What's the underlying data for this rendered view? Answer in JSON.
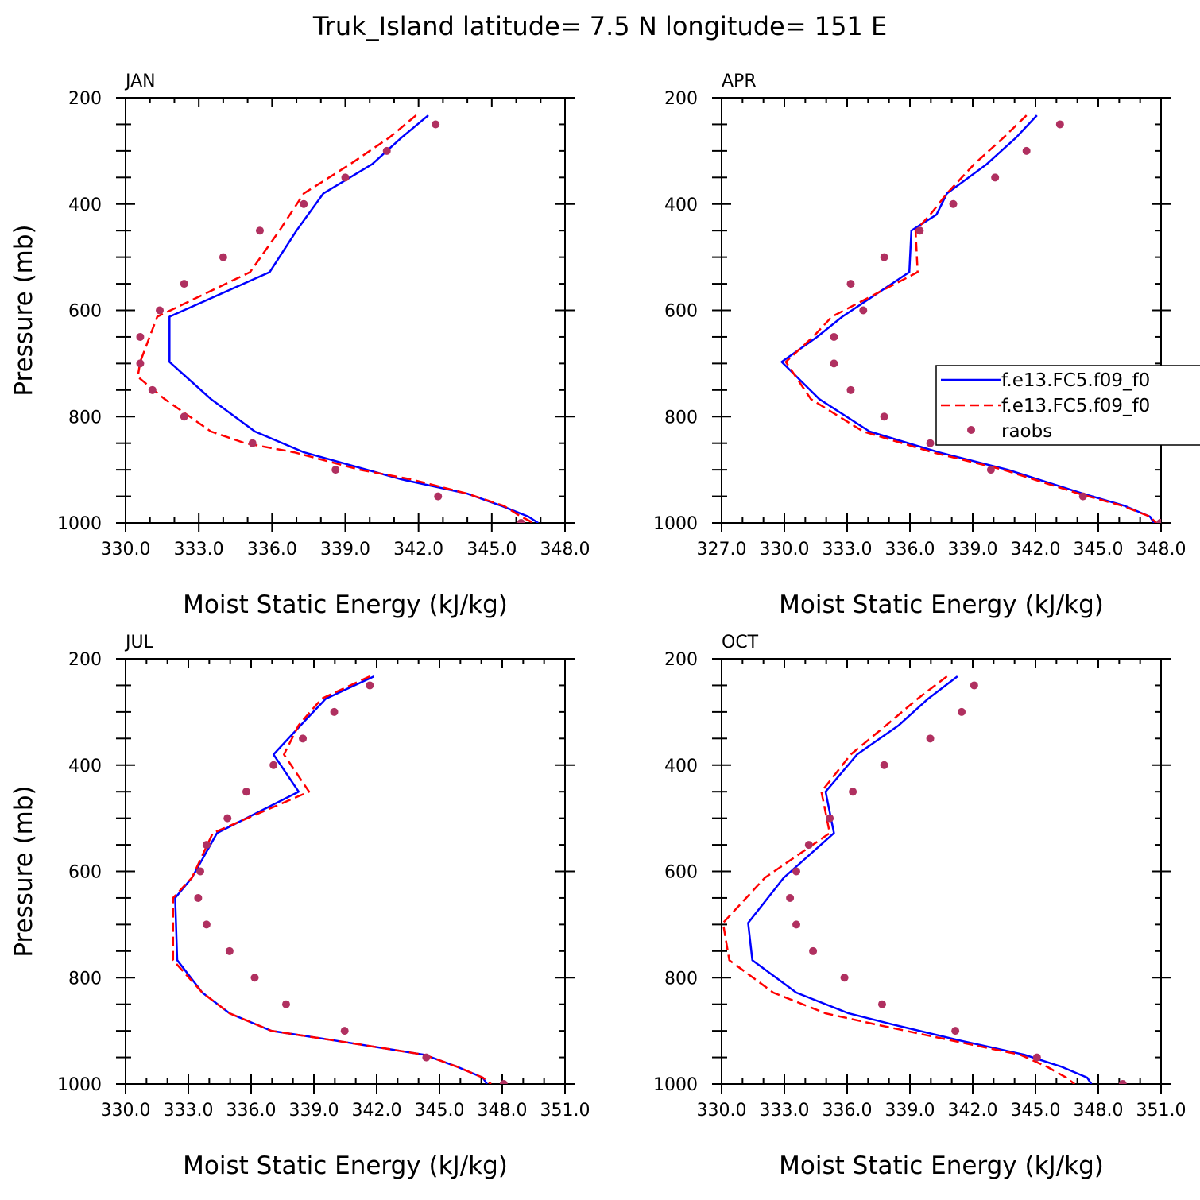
{
  "figure": {
    "title": "Truk_Island  latitude= 7.5 N longitude= 151 E"
  },
  "colors": {
    "model_solid": "#0000ff",
    "model_dashed": "#ff0000",
    "raobs": "#b03060",
    "axis": "#000000"
  },
  "legend": {
    "entries": [
      "f.e13.FC5.f09_f0",
      "f.e13.FC5.f09_f0",
      "raobs"
    ]
  },
  "chart_data": [
    {
      "type": "line",
      "title": "JAN",
      "xlabel": "Moist Static Energy (kJ/kg)",
      "ylabel": "Pressure (mb)",
      "xlim": [
        330,
        348
      ],
      "ylim": [
        1000,
        200
      ],
      "xticks": [
        "330.0",
        "333.0",
        "336.0",
        "339.0",
        "342.0",
        "345.0",
        "348.0"
      ],
      "yticks": [
        "200",
        "400",
        "600",
        "800",
        "1000"
      ],
      "series": [
        {
          "name": "f.e13.FC5.f09_f0",
          "style": "solid",
          "x": [
            342.4,
            341.3,
            340.1,
            338.1,
            337.0,
            335.9,
            331.8,
            331.8,
            333.5,
            335.3,
            337.3,
            341.3,
            344.0,
            345.4,
            346.5,
            346.9
          ],
          "y": [
            233,
            275,
            325,
            380,
            450,
            528,
            612,
            697,
            767,
            828,
            867,
            918,
            945,
            968,
            988,
            1000
          ]
        },
        {
          "name": "f.e13.FC5.f09_f0",
          "style": "dashed",
          "x": [
            341.9,
            340.8,
            339.2,
            337.3,
            336.3,
            335.1,
            331.3,
            330.6,
            330.5,
            331.6,
            333.5,
            334.9,
            336.9,
            339.6,
            341.7,
            344.0,
            345.5,
            346.2,
            346.7
          ],
          "y": [
            233,
            275,
            325,
            380,
            450,
            528,
            612,
            697,
            725,
            767,
            828,
            850,
            867,
            900,
            918,
            945,
            968,
            988,
            1000
          ]
        }
      ],
      "raobs": {
        "x": [
          342.7,
          340.7,
          339.0,
          337.3,
          335.5,
          334.0,
          332.4,
          331.4,
          330.6,
          330.6,
          331.1,
          332.4,
          335.2,
          338.6,
          342.8,
          346.2
        ],
        "y": [
          250,
          300,
          350,
          400,
          450,
          500,
          550,
          600,
          650,
          700,
          750,
          800,
          850,
          900,
          950,
          1000
        ]
      },
      "legend": false
    },
    {
      "type": "line",
      "title": "APR",
      "xlabel": "Moist Static Energy (kJ/kg)",
      "ylabel": "",
      "xlim": [
        327.03,
        348.03
      ],
      "ylim": [
        1000,
        200
      ],
      "xticks": [
        "327.0",
        "330.0",
        "333.0",
        "336.0",
        "339.0",
        "342.0",
        "345.0",
        "348.0"
      ],
      "yticks": [
        "200",
        "400",
        "600",
        "800",
        "1000"
      ],
      "series": [
        {
          "name": "f.e13.FC5.f09_f0",
          "style": "solid",
          "x": [
            342.1,
            341.1,
            339.7,
            337.8,
            337.3,
            336.1,
            336.0,
            332.8,
            331.6,
            329.9,
            331.7,
            334.1,
            337.4,
            340.7,
            344.3,
            346.3,
            347.5,
            347.7
          ],
          "y": [
            233,
            275,
            325,
            380,
            420,
            450,
            528,
            612,
            650,
            697,
            767,
            828,
            867,
            900,
            945,
            968,
            988,
            1000
          ]
        },
        {
          "name": "f.e13.FC5.f09_f0",
          "style": "dashed",
          "x": [
            341.6,
            340.5,
            339.1,
            337.8,
            337.0,
            336.3,
            336.4,
            332.3,
            331.4,
            330.1,
            331.3,
            333.8,
            337.1,
            340.5,
            344.1,
            346.2,
            347.5,
            347.8
          ],
          "y": [
            233,
            275,
            325,
            380,
            420,
            450,
            528,
            612,
            650,
            697,
            767,
            828,
            867,
            900,
            945,
            968,
            988,
            1000
          ]
        }
      ],
      "raobs": {
        "x": [
          343.2,
          341.6,
          340.1,
          338.1,
          336.5,
          334.8,
          333.2,
          333.8,
          332.4,
          332.4,
          333.2,
          334.8,
          337.0,
          339.9,
          344.3,
          348.0
        ],
        "y": [
          250,
          300,
          350,
          400,
          450,
          500,
          550,
          600,
          650,
          700,
          750,
          800,
          850,
          900,
          950,
          1000
        ]
      },
      "legend": true
    },
    {
      "type": "line",
      "title": "JUL",
      "xlabel": "Moist Static Energy (kJ/kg)",
      "ylabel": "Pressure (mb)",
      "xlim": [
        330.03,
        351.03
      ],
      "ylim": [
        1000,
        200
      ],
      "xticks": [
        "330.0",
        "333.0",
        "336.0",
        "339.0",
        "342.0",
        "345.0",
        "348.0",
        "351.0"
      ],
      "yticks": [
        "200",
        "400",
        "600",
        "800",
        "1000"
      ],
      "series": [
        {
          "name": "f.e13.FC5.f09_f0",
          "style": "solid",
          "x": [
            341.9,
            339.6,
            338.4,
            337.1,
            338.3,
            334.4,
            333.2,
            332.4,
            332.5,
            333.7,
            335.0,
            337.0,
            340.0,
            344.3,
            345.9,
            347.1,
            347.3
          ],
          "y": [
            233,
            275,
            325,
            380,
            450,
            528,
            612,
            650,
            767,
            828,
            867,
            900,
            918,
            945,
            968,
            988,
            1000
          ]
        },
        {
          "name": "f.e13.FC5.f09_f0",
          "style": "dashed",
          "x": [
            341.7,
            339.4,
            338.3,
            337.6,
            338.8,
            334.2,
            333.2,
            332.3,
            332.3,
            333.7,
            335.0,
            337.0,
            340.0,
            344.3,
            345.9,
            347.1,
            347.5
          ],
          "y": [
            233,
            275,
            325,
            380,
            450,
            528,
            612,
            650,
            767,
            828,
            867,
            900,
            918,
            945,
            968,
            988,
            1000
          ]
        }
      ],
      "raobs": {
        "x": [
          341.7,
          340.0,
          338.5,
          337.1,
          335.8,
          334.9,
          333.9,
          333.6,
          333.5,
          333.9,
          335.0,
          336.2,
          337.7,
          340.5,
          344.4,
          348.1
        ],
        "y": [
          250,
          300,
          350,
          400,
          450,
          500,
          550,
          600,
          650,
          700,
          750,
          800,
          850,
          900,
          950,
          1000
        ]
      },
      "legend": false
    },
    {
      "type": "line",
      "title": "OCT",
      "xlabel": "Moist Static Energy (kJ/kg)",
      "ylabel": "",
      "xlim": [
        330.03,
        351.03
      ],
      "ylim": [
        1000,
        200
      ],
      "xticks": [
        "330.0",
        "333.0",
        "336.0",
        "339.0",
        "342.0",
        "345.0",
        "348.0",
        "351.0"
      ],
      "yticks": [
        "200",
        "400",
        "600",
        "800",
        "1000"
      ],
      "series": [
        {
          "name": "f.e13.FC5.f09_f0",
          "style": "solid",
          "x": [
            341.3,
            339.9,
            338.5,
            336.5,
            335.0,
            335.4,
            333.0,
            331.3,
            331.5,
            333.6,
            336.1,
            338.2,
            341.4,
            344.5,
            346.3,
            347.5,
            347.7
          ],
          "y": [
            233,
            275,
            325,
            380,
            450,
            528,
            612,
            697,
            767,
            828,
            867,
            888,
            918,
            945,
            968,
            988,
            1000
          ]
        },
        {
          "name": "f.e13.FC5.f09_f0",
          "style": "dashed",
          "x": [
            340.8,
            339.4,
            337.9,
            336.2,
            334.8,
            335.2,
            332.1,
            330.1,
            330.4,
            332.5,
            335.0,
            337.4,
            341.0,
            344.3,
            345.6,
            346.5,
            346.9
          ],
          "y": [
            233,
            275,
            325,
            380,
            450,
            528,
            612,
            697,
            767,
            828,
            867,
            888,
            918,
            945,
            968,
            988,
            1000
          ]
        }
      ],
      "raobs": {
        "x": [
          342.1,
          341.5,
          340.0,
          337.8,
          336.3,
          335.2,
          334.2,
          333.6,
          333.3,
          333.6,
          334.4,
          335.9,
          337.7,
          341.2,
          345.1,
          349.2
        ],
        "y": [
          250,
          300,
          350,
          400,
          450,
          500,
          550,
          600,
          650,
          700,
          750,
          800,
          850,
          900,
          950,
          1000
        ]
      },
      "legend": false
    }
  ]
}
